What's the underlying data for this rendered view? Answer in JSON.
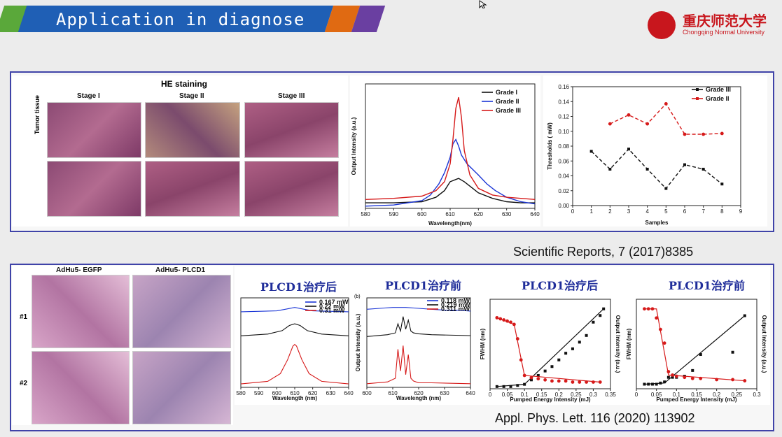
{
  "slide": {
    "title": "Application in diagnose",
    "logo_cn": "重庆师范大学",
    "logo_en": "Chongqing Normal University",
    "colors": {
      "title_bar": "#1f5fb5",
      "green": "#5aa83a",
      "orange": "#e06a12",
      "purple": "#6a3fa1",
      "panel_border": "#3f43a8",
      "brand": "#c8161d"
    }
  },
  "top_panel": {
    "he_title": "HE staining",
    "stages": [
      "Stage I",
      "Stage II",
      "Stage III"
    ],
    "row_label": "Tumor tissue",
    "reference": "Scientific Reports, 7 (2017)8385"
  },
  "bottom_panel": {
    "col1": "AdHu5- EGFP",
    "col2": "AdHu5- PLCD1",
    "rows": [
      "#1",
      "#2"
    ],
    "heading_a": "PLCD1治疗后",
    "heading_b": "PLCD1治疗前",
    "heading_c": "PLCD1治疗后",
    "heading_d": "PLCD1治疗前",
    "panel_b_tag": "(b)",
    "reference": "Appl. Phys. Lett. 116 (2020) 113902"
  },
  "chart_data": [
    {
      "type": "line",
      "xlabel": "Wavelength(nm)",
      "ylabel": "Output Intensity (a.u.)",
      "xlim": [
        580,
        640
      ],
      "x_ticks": [
        580,
        590,
        600,
        610,
        620,
        630,
        640
      ],
      "legend_position": "top-right",
      "series": [
        {
          "name": "Grade I",
          "color": "#111111",
          "x": [
            580,
            590,
            600,
            605,
            608,
            610,
            612,
            613,
            615,
            618,
            620,
            625,
            630,
            635,
            640
          ],
          "y": [
            0.05,
            0.05,
            0.06,
            0.1,
            0.16,
            0.24,
            0.26,
            0.27,
            0.24,
            0.18,
            0.14,
            0.09,
            0.06,
            0.05,
            0.05
          ]
        },
        {
          "name": "Grade II",
          "color": "#1a35d6",
          "x": [
            580,
            590,
            600,
            603,
            606,
            608,
            610,
            611,
            612,
            613,
            614,
            616,
            618,
            620,
            623,
            626,
            630,
            635,
            640
          ],
          "y": [
            0.02,
            0.03,
            0.07,
            0.12,
            0.22,
            0.32,
            0.46,
            0.58,
            0.62,
            0.56,
            0.48,
            0.4,
            0.35,
            0.3,
            0.22,
            0.16,
            0.1,
            0.06,
            0.04
          ]
        },
        {
          "name": "Grade III",
          "color": "#d61a1a",
          "x": [
            580,
            590,
            600,
            605,
            608,
            610,
            611,
            612,
            613,
            614,
            615,
            617,
            620,
            625,
            630,
            635,
            640
          ],
          "y": [
            0.08,
            0.09,
            0.11,
            0.16,
            0.24,
            0.4,
            0.62,
            0.9,
            1.0,
            0.82,
            0.52,
            0.3,
            0.18,
            0.12,
            0.1,
            0.09,
            0.08
          ]
        }
      ]
    },
    {
      "type": "line",
      "xlabel": "Samples",
      "ylabel": "Thresholds ( mW)",
      "xlim": [
        0,
        9
      ],
      "ylim": [
        0.0,
        0.16
      ],
      "x_ticks": [
        0,
        1,
        2,
        3,
        4,
        5,
        6,
        7,
        8,
        9
      ],
      "y_ticks": [
        0.0,
        0.02,
        0.04,
        0.06,
        0.08,
        0.1,
        0.12,
        0.14,
        0.16
      ],
      "legend_position": "top-right",
      "series": [
        {
          "name": "Grade III",
          "color": "#111111",
          "x": [
            1,
            2,
            3,
            4,
            5,
            6,
            7,
            8
          ],
          "y": [
            0.073,
            0.049,
            0.076,
            0.049,
            0.023,
            0.055,
            0.049,
            0.029
          ]
        },
        {
          "name": "Grade II",
          "color": "#d61a1a",
          "x": [
            2,
            3,
            4,
            5,
            6,
            7,
            8
          ],
          "y": [
            0.11,
            0.122,
            0.11,
            0.137,
            0.096,
            0.096,
            0.097
          ]
        }
      ]
    },
    {
      "type": "line",
      "xlabel": "Wavelength (nm)",
      "xlim": [
        580,
        640
      ],
      "x_ticks": [
        580,
        590,
        600,
        610,
        620,
        630,
        640
      ],
      "legend_position": "top-right",
      "series": [
        {
          "name": "0.167 mW",
          "color": "#1a35d6",
          "x": [
            580,
            600,
            605,
            610,
            615,
            620,
            640
          ],
          "y": [
            0.88,
            0.89,
            0.91,
            0.93,
            0.91,
            0.89,
            0.88
          ]
        },
        {
          "name": "0.22 mW",
          "color": "#111111",
          "x": [
            580,
            595,
            603,
            607,
            610,
            613,
            617,
            625,
            640
          ],
          "y": [
            0.6,
            0.62,
            0.66,
            0.72,
            0.74,
            0.72,
            0.66,
            0.62,
            0.6
          ]
        },
        {
          "name": "0.31 mW",
          "color": "#d61a1a",
          "x": [
            580,
            595,
            602,
            606,
            609,
            610,
            611,
            614,
            618,
            625,
            640
          ],
          "y": [
            0.04,
            0.07,
            0.16,
            0.32,
            0.48,
            0.5,
            0.48,
            0.32,
            0.16,
            0.07,
            0.04
          ]
        }
      ]
    },
    {
      "type": "line",
      "xlabel": "Wavelength (nm)",
      "ylabel": "Output Intensity (a.u.)",
      "xlim": [
        600,
        640
      ],
      "x_ticks": [
        600,
        610,
        620,
        630,
        640
      ],
      "legend_position": "top-right",
      "series": [
        {
          "name": "0.118 mW",
          "color": "#1a35d6",
          "x": [
            600,
            605,
            610,
            615,
            620,
            625,
            630,
            635,
            640
          ],
          "y": [
            0.86,
            0.87,
            0.88,
            0.88,
            0.87,
            0.86,
            0.85,
            0.85,
            0.84
          ]
        },
        {
          "name": "0.219 mW",
          "color": "#111111",
          "x": [
            600,
            608,
            611,
            612,
            613,
            614,
            615,
            616,
            617,
            618,
            620,
            625,
            640
          ],
          "y": [
            0.56,
            0.58,
            0.6,
            0.7,
            0.62,
            0.78,
            0.64,
            0.74,
            0.62,
            0.6,
            0.59,
            0.58,
            0.57
          ]
        },
        {
          "name": "0.311 mW",
          "color": "#d61a1a",
          "x": [
            600,
            608,
            611,
            612,
            613,
            614,
            615,
            616,
            617,
            618,
            620,
            625,
            640
          ],
          "y": [
            0.04,
            0.06,
            0.1,
            0.42,
            0.18,
            0.46,
            0.14,
            0.36,
            0.1,
            0.07,
            0.05,
            0.05,
            0.04
          ]
        }
      ]
    },
    {
      "type": "scatter",
      "xlabel": "Pumped Energy Intensity (mJ)",
      "ylabel": "FWHM (nm)",
      "y2label": "Output Intensity (a.u.)",
      "xlim": [
        0.0,
        0.35
      ],
      "x_ticks": [
        0.0,
        0.05,
        0.1,
        0.15,
        0.2,
        0.25,
        0.3,
        0.35
      ],
      "series": [
        {
          "name": "Output intensity",
          "color": "#111111",
          "x": [
            0.02,
            0.04,
            0.06,
            0.08,
            0.1,
            0.12,
            0.14,
            0.16,
            0.18,
            0.2,
            0.22,
            0.24,
            0.26,
            0.28,
            0.3,
            0.32,
            0.33
          ],
          "y": [
            0.02,
            0.02,
            0.02,
            0.03,
            0.04,
            0.08,
            0.12,
            0.16,
            0.2,
            0.26,
            0.32,
            0.36,
            0.42,
            0.48,
            0.6,
            0.66,
            0.72
          ]
        },
        {
          "name": "FWHM",
          "color": "#d61a1a",
          "x": [
            0.02,
            0.03,
            0.04,
            0.05,
            0.06,
            0.07,
            0.08,
            0.09,
            0.1,
            0.12,
            0.14,
            0.16,
            0.18,
            0.2,
            0.22,
            0.24,
            0.26,
            0.28,
            0.3,
            0.32
          ],
          "y": [
            0.64,
            0.63,
            0.62,
            0.61,
            0.6,
            0.58,
            0.45,
            0.26,
            0.12,
            0.1,
            0.09,
            0.08,
            0.07,
            0.07,
            0.07,
            0.06,
            0.06,
            0.06,
            0.06,
            0.06
          ]
        }
      ]
    },
    {
      "type": "scatter",
      "xlabel": "Pumped Energy Intensity (mJ)",
      "ylabel": "FWHM (nm)",
      "y2label": "Output Intensity (a.u.)",
      "xlim": [
        0.0,
        0.3
      ],
      "x_ticks": [
        0.0,
        0.05,
        0.1,
        0.15,
        0.2,
        0.25,
        0.3
      ],
      "series": [
        {
          "name": "Output intensity",
          "color": "#111111",
          "x": [
            0.02,
            0.03,
            0.04,
            0.05,
            0.06,
            0.07,
            0.08,
            0.09,
            0.1,
            0.12,
            0.14,
            0.16,
            0.24,
            0.27
          ],
          "y": [
            0.04,
            0.04,
            0.04,
            0.04,
            0.05,
            0.06,
            0.1,
            0.1,
            0.1,
            0.11,
            0.16,
            0.3,
            0.32,
            0.64
          ]
        },
        {
          "name": "FWHM",
          "color": "#d61a1a",
          "x": [
            0.02,
            0.03,
            0.04,
            0.05,
            0.06,
            0.07,
            0.08,
            0.09,
            0.1,
            0.12,
            0.14,
            0.16,
            0.2,
            0.24,
            0.27
          ],
          "y": [
            0.7,
            0.7,
            0.7,
            0.62,
            0.52,
            0.4,
            0.15,
            0.12,
            0.11,
            0.1,
            0.09,
            0.09,
            0.08,
            0.08,
            0.07
          ]
        }
      ]
    }
  ]
}
